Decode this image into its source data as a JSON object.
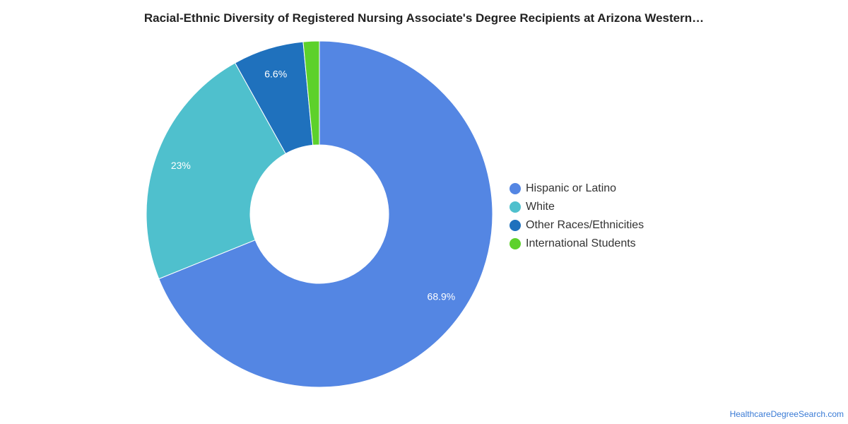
{
  "title": "Racial-Ethnic Diversity of Registered Nursing Associate's Degree Recipients at Arizona Western…",
  "chart_data": {
    "type": "pie",
    "donut": true,
    "start_angle_deg": 0,
    "direction": "clockwise",
    "legend_position": "right",
    "slices": [
      {
        "label": "Hispanic or Latino",
        "value": 68.9,
        "display": "68.9%",
        "color": "#5486e3"
      },
      {
        "label": "White",
        "value": 23.0,
        "display": "23%",
        "color": "#4fc0cd"
      },
      {
        "label": "Other Races/Ethnicities",
        "value": 6.6,
        "display": "6.6%",
        "color": "#1f71bd"
      },
      {
        "label": "International Students",
        "value": 1.5,
        "display": "",
        "color": "#5dd12b"
      }
    ]
  },
  "legend": {
    "items": [
      {
        "label": "Hispanic or Latino",
        "color": "#5486e3"
      },
      {
        "label": "White",
        "color": "#4fc0cd"
      },
      {
        "label": "Other Races/Ethnicities",
        "color": "#1f71bd"
      },
      {
        "label": "International Students",
        "color": "#5dd12b"
      }
    ]
  },
  "source": "HealthcareDegreeSearch.com"
}
